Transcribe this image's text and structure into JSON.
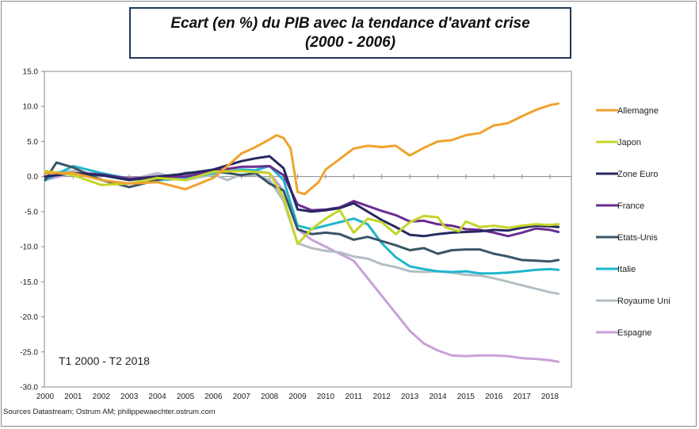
{
  "chart_data": {
    "type": "line",
    "title": "Ecart (en %) du PIB avec la tendance d'avant crise",
    "subtitle": "(2000 - 2006)",
    "annotation": "T1 2000 - T2 2018",
    "source": "Sources Datastream; Ostrum AM; philippewaechter.ostrum.com",
    "ylim": [
      -30,
      15
    ],
    "xlim": [
      2000,
      2018.5
    ],
    "y_ticks": [
      "15.0",
      "10.0",
      "5.0",
      "0.0",
      "-5.0",
      "-10.0",
      "-15.0",
      "-20.0",
      "-25.0",
      "-30.0"
    ],
    "y_tick_values": [
      15,
      10,
      5,
      0,
      -5,
      -10,
      -15,
      -20,
      -25,
      -30
    ],
    "x_ticks": [
      "2000",
      "2001",
      "2002",
      "2003",
      "2004",
      "2005",
      "2006",
      "2007",
      "2008",
      "2009",
      "2010",
      "2011",
      "2012",
      "2013",
      "2014",
      "2015",
      "2016",
      "2017",
      "2018"
    ],
    "x_tick_values": [
      2000,
      2001,
      2002,
      2003,
      2004,
      2005,
      2006,
      2007,
      2008,
      2009,
      2010,
      2011,
      2012,
      2013,
      2014,
      2015,
      2016,
      2017,
      2018
    ],
    "grid": "off",
    "legend_position": "right",
    "series": [
      {
        "name": "Allemagne",
        "color": "#F0A22E",
        "points": [
          [
            2000,
            0.5
          ],
          [
            2001,
            0.5
          ],
          [
            2002,
            -0.5
          ],
          [
            2003,
            -1.0
          ],
          [
            2004,
            -0.8
          ],
          [
            2005,
            -1.8
          ],
          [
            2006,
            -0.2
          ],
          [
            2006.5,
            1.5
          ],
          [
            2007,
            3.3
          ],
          [
            2007.5,
            4.2
          ],
          [
            2008,
            5.3
          ],
          [
            2008.25,
            5.9
          ],
          [
            2008.5,
            5.5
          ],
          [
            2008.75,
            4.0
          ],
          [
            2009,
            -2.2
          ],
          [
            2009.25,
            -2.5
          ],
          [
            2009.75,
            -0.8
          ],
          [
            2010,
            1.0
          ],
          [
            2010.5,
            2.5
          ],
          [
            2011,
            4.0
          ],
          [
            2011.5,
            4.4
          ],
          [
            2012,
            4.2
          ],
          [
            2012.5,
            4.4
          ],
          [
            2013,
            3.0
          ],
          [
            2013.5,
            4.1
          ],
          [
            2014,
            5.0
          ],
          [
            2014.5,
            5.2
          ],
          [
            2015,
            5.9
          ],
          [
            2015.5,
            6.2
          ],
          [
            2016,
            7.3
          ],
          [
            2016.5,
            7.6
          ],
          [
            2017,
            8.6
          ],
          [
            2017.5,
            9.5
          ],
          [
            2018,
            10.2
          ],
          [
            2018.3,
            10.4
          ]
        ]
      },
      {
        "name": "Japon",
        "color": "#C5D52A",
        "points": [
          [
            2000,
            0.8
          ],
          [
            2001,
            0.2
          ],
          [
            2002,
            -1.2
          ],
          [
            2003,
            -1.0
          ],
          [
            2004,
            -0.2
          ],
          [
            2005,
            -0.5
          ],
          [
            2006,
            0.7
          ],
          [
            2007,
            0.8
          ],
          [
            2008,
            0.5
          ],
          [
            2008.5,
            -3.0
          ],
          [
            2009,
            -9.6
          ],
          [
            2009.5,
            -7.5
          ],
          [
            2010,
            -6.0
          ],
          [
            2010.5,
            -4.8
          ],
          [
            2011,
            -8.0
          ],
          [
            2011.5,
            -6.0
          ],
          [
            2012,
            -6.5
          ],
          [
            2012.5,
            -8.2
          ],
          [
            2013,
            -6.5
          ],
          [
            2013.5,
            -5.6
          ],
          [
            2014,
            -5.8
          ],
          [
            2014.25,
            -7.2
          ],
          [
            2014.75,
            -7.8
          ],
          [
            2015,
            -6.4
          ],
          [
            2015.5,
            -7.2
          ],
          [
            2016,
            -7.0
          ],
          [
            2016.5,
            -7.3
          ],
          [
            2017,
            -7.0
          ],
          [
            2017.5,
            -6.8
          ],
          [
            2018,
            -6.9
          ],
          [
            2018.3,
            -6.8
          ]
        ]
      },
      {
        "name": "Zone Euro",
        "color": "#262860",
        "points": [
          [
            2000,
            0.0
          ],
          [
            2001,
            0.5
          ],
          [
            2002,
            0.2
          ],
          [
            2003,
            -0.5
          ],
          [
            2004,
            0.0
          ],
          [
            2005,
            0.4
          ],
          [
            2006,
            1.0
          ],
          [
            2007,
            2.2
          ],
          [
            2007.5,
            2.6
          ],
          [
            2008,
            2.9
          ],
          [
            2008.5,
            1.2
          ],
          [
            2009,
            -4.7
          ],
          [
            2009.5,
            -5.0
          ],
          [
            2010,
            -4.8
          ],
          [
            2010.5,
            -4.5
          ],
          [
            2011,
            -3.8
          ],
          [
            2011.5,
            -5.0
          ],
          [
            2012,
            -6.2
          ],
          [
            2012.5,
            -7.2
          ],
          [
            2013,
            -8.3
          ],
          [
            2013.5,
            -8.5
          ],
          [
            2014,
            -8.2
          ],
          [
            2014.5,
            -8.0
          ],
          [
            2015,
            -7.9
          ],
          [
            2015.5,
            -7.8
          ],
          [
            2016,
            -7.6
          ],
          [
            2016.5,
            -7.7
          ],
          [
            2017,
            -7.3
          ],
          [
            2017.5,
            -7.0
          ],
          [
            2018,
            -7.1
          ],
          [
            2018.3,
            -7.2
          ]
        ]
      },
      {
        "name": "France",
        "color": "#6A2C91",
        "points": [
          [
            2000,
            0.0
          ],
          [
            2001,
            0.5
          ],
          [
            2002,
            0.3
          ],
          [
            2003,
            -0.3
          ],
          [
            2004,
            0.0
          ],
          [
            2005,
            0.0
          ],
          [
            2006,
            0.8
          ],
          [
            2007,
            1.4
          ],
          [
            2007.5,
            1.4
          ],
          [
            2008,
            1.5
          ],
          [
            2008.5,
            0.2
          ],
          [
            2009,
            -4.0
          ],
          [
            2009.5,
            -4.8
          ],
          [
            2010,
            -4.7
          ],
          [
            2010.5,
            -4.4
          ],
          [
            2011,
            -3.5
          ],
          [
            2011.5,
            -4.2
          ],
          [
            2012,
            -4.9
          ],
          [
            2012.5,
            -5.5
          ],
          [
            2013,
            -6.4
          ],
          [
            2013.5,
            -6.3
          ],
          [
            2014,
            -6.8
          ],
          [
            2014.5,
            -7.0
          ],
          [
            2015,
            -7.5
          ],
          [
            2015.5,
            -7.6
          ],
          [
            2016,
            -8.0
          ],
          [
            2016.5,
            -8.5
          ],
          [
            2017,
            -8.0
          ],
          [
            2017.5,
            -7.4
          ],
          [
            2018,
            -7.6
          ],
          [
            2018.3,
            -7.9
          ]
        ]
      },
      {
        "name": "Etats-Unis",
        "color": "#3A5566",
        "points": [
          [
            2000,
            -0.5
          ],
          [
            2000.4,
            2.0
          ],
          [
            2001,
            1.3
          ],
          [
            2002,
            -0.5
          ],
          [
            2003,
            -1.5
          ],
          [
            2004,
            -0.5
          ],
          [
            2005,
            0.5
          ],
          [
            2006,
            0.8
          ],
          [
            2007,
            0.2
          ],
          [
            2007.5,
            0.5
          ],
          [
            2008,
            -1.0
          ],
          [
            2008.5,
            -2.0
          ],
          [
            2009,
            -7.5
          ],
          [
            2009.5,
            -8.2
          ],
          [
            2010,
            -8.0
          ],
          [
            2010.5,
            -8.2
          ],
          [
            2011,
            -9.0
          ],
          [
            2011.5,
            -8.6
          ],
          [
            2012,
            -9.2
          ],
          [
            2012.5,
            -9.8
          ],
          [
            2013,
            -10.5
          ],
          [
            2013.5,
            -10.2
          ],
          [
            2014,
            -11.0
          ],
          [
            2014.5,
            -10.5
          ],
          [
            2015,
            -10.4
          ],
          [
            2015.5,
            -10.4
          ],
          [
            2016,
            -11.0
          ],
          [
            2016.5,
            -11.4
          ],
          [
            2017,
            -11.9
          ],
          [
            2017.5,
            -12.0
          ],
          [
            2018,
            -12.1
          ],
          [
            2018.3,
            -11.9
          ]
        ]
      },
      {
        "name": "Italie",
        "color": "#1FB6CC",
        "points": [
          [
            2000,
            -0.5
          ],
          [
            2001,
            1.5
          ],
          [
            2002,
            0.5
          ],
          [
            2003,
            -0.3
          ],
          [
            2004,
            -0.5
          ],
          [
            2005,
            -0.3
          ],
          [
            2006,
            0.5
          ],
          [
            2007,
            1.0
          ],
          [
            2007.5,
            0.9
          ],
          [
            2008,
            1.5
          ],
          [
            2008.5,
            -0.5
          ],
          [
            2009,
            -7.0
          ],
          [
            2009.5,
            -7.5
          ],
          [
            2010,
            -7.0
          ],
          [
            2010.5,
            -6.5
          ],
          [
            2011,
            -6.0
          ],
          [
            2011.5,
            -6.8
          ],
          [
            2012,
            -9.5
          ],
          [
            2012.5,
            -11.5
          ],
          [
            2013,
            -12.8
          ],
          [
            2013.5,
            -13.2
          ],
          [
            2014,
            -13.5
          ],
          [
            2014.5,
            -13.6
          ],
          [
            2015,
            -13.5
          ],
          [
            2015.5,
            -13.8
          ],
          [
            2016,
            -13.8
          ],
          [
            2016.5,
            -13.7
          ],
          [
            2017,
            -13.5
          ],
          [
            2017.5,
            -13.3
          ],
          [
            2018,
            -13.2
          ],
          [
            2018.3,
            -13.3
          ]
        ]
      },
      {
        "name": "Royaume Uni",
        "color": "#B3BEC4",
        "points": [
          [
            2000,
            0.5
          ],
          [
            2001,
            0.8
          ],
          [
            2002,
            0.3
          ],
          [
            2003,
            -0.5
          ],
          [
            2004,
            0.5
          ],
          [
            2005,
            -0.5
          ],
          [
            2006,
            0.3
          ],
          [
            2006.5,
            -0.5
          ],
          [
            2007,
            0.3
          ],
          [
            2007.5,
            0.2
          ],
          [
            2008,
            -0.5
          ],
          [
            2008.5,
            -3.5
          ],
          [
            2009,
            -9.5
          ],
          [
            2009.5,
            -10.2
          ],
          [
            2010,
            -10.6
          ],
          [
            2010.5,
            -10.8
          ],
          [
            2011,
            -11.4
          ],
          [
            2011.5,
            -11.7
          ],
          [
            2012,
            -12.5
          ],
          [
            2012.5,
            -12.9
          ],
          [
            2013,
            -13.5
          ],
          [
            2013.5,
            -13.6
          ],
          [
            2014,
            -13.5
          ],
          [
            2014.5,
            -13.7
          ],
          [
            2015,
            -14.0
          ],
          [
            2015.5,
            -14.1
          ],
          [
            2016,
            -14.5
          ],
          [
            2016.5,
            -15.0
          ],
          [
            2017,
            -15.5
          ],
          [
            2017.5,
            -16.0
          ],
          [
            2018,
            -16.5
          ],
          [
            2018.3,
            -16.7
          ]
        ]
      },
      {
        "name": "Espagne",
        "color": "#C9A0D9",
        "points": [
          [
            2000,
            -0.5
          ],
          [
            2001,
            0.5
          ],
          [
            2002,
            0.2
          ],
          [
            2003,
            -0.5
          ],
          [
            2004,
            0.3
          ],
          [
            2005,
            -0.2
          ],
          [
            2006,
            0.5
          ],
          [
            2007,
            1.0
          ],
          [
            2008,
            0.5
          ],
          [
            2008.5,
            -2.0
          ],
          [
            2009,
            -7.5
          ],
          [
            2009.5,
            -9.0
          ],
          [
            2010,
            -10.0
          ],
          [
            2010.5,
            -11.0
          ],
          [
            2011,
            -12.0
          ],
          [
            2011.5,
            -14.5
          ],
          [
            2012,
            -17.0
          ],
          [
            2012.5,
            -19.5
          ],
          [
            2013,
            -22.0
          ],
          [
            2013.5,
            -23.8
          ],
          [
            2014,
            -24.8
          ],
          [
            2014.5,
            -25.5
          ],
          [
            2015,
            -25.6
          ],
          [
            2015.5,
            -25.5
          ],
          [
            2016,
            -25.5
          ],
          [
            2016.5,
            -25.6
          ],
          [
            2017,
            -25.9
          ],
          [
            2017.5,
            -26.0
          ],
          [
            2018,
            -26.2
          ],
          [
            2018.3,
            -26.4
          ]
        ]
      }
    ]
  }
}
